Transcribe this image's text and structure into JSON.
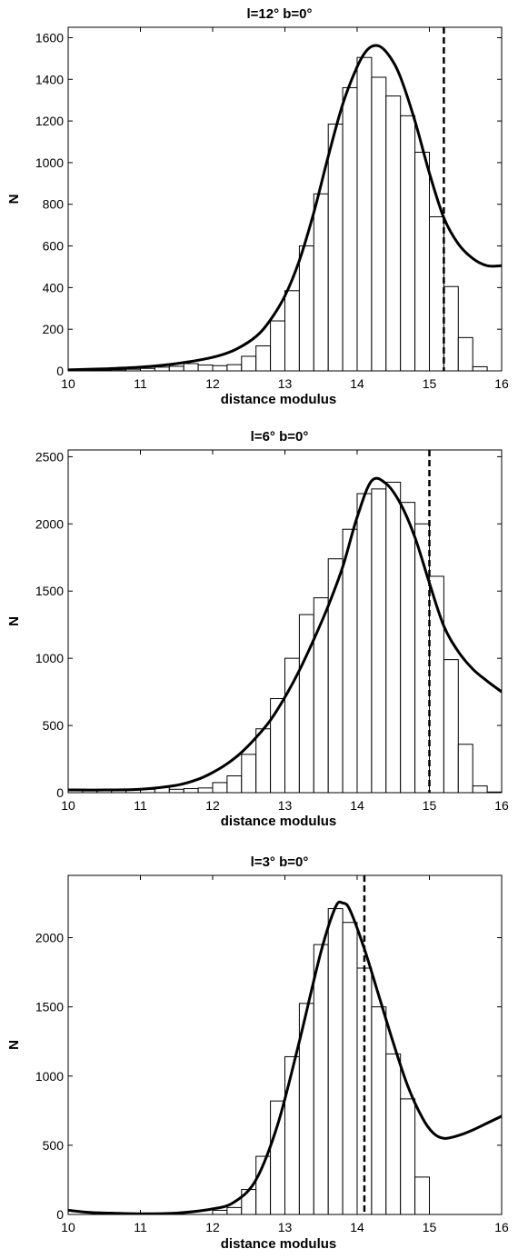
{
  "chart_data": [
    {
      "type": "bar",
      "title": "l=12°  b=0°",
      "xlabel": "distance modulus",
      "ylabel": "N",
      "xlim": [
        10,
        16
      ],
      "ylim": [
        0,
        1650
      ],
      "xticks": [
        10,
        11,
        12,
        13,
        14,
        15,
        16
      ],
      "yticks": [
        0,
        200,
        400,
        600,
        800,
        1000,
        1200,
        1400,
        1600
      ],
      "bin_width": 0.2,
      "bin_starts": [
        10.0,
        10.2,
        10.4,
        10.6,
        10.8,
        11.0,
        11.2,
        11.4,
        11.6,
        11.8,
        12.0,
        12.2,
        12.4,
        12.6,
        12.8,
        13.0,
        13.2,
        13.4,
        13.6,
        13.8,
        14.0,
        14.2,
        14.4,
        14.6,
        14.8,
        15.0,
        15.2,
        15.4,
        15.6,
        15.8
      ],
      "values": [
        5,
        3,
        3,
        5,
        8,
        12,
        18,
        22,
        35,
        28,
        25,
        30,
        70,
        120,
        240,
        385,
        600,
        850,
        1185,
        1360,
        1505,
        1410,
        1320,
        1225,
        1050,
        740,
        405,
        160,
        20,
        0
      ],
      "model_curve": {
        "x": [
          10.0,
          10.5,
          11.0,
          11.5,
          12.0,
          12.3,
          12.6,
          12.8,
          13.0,
          13.2,
          13.4,
          13.6,
          13.8,
          14.0,
          14.15,
          14.3,
          14.45,
          14.6,
          14.8,
          15.0,
          15.2,
          15.4,
          15.6,
          15.8,
          16.0
        ],
        "y": [
          5,
          10,
          18,
          35,
          65,
          100,
          165,
          245,
          360,
          530,
          760,
          1030,
          1280,
          1460,
          1545,
          1560,
          1510,
          1410,
          1200,
          950,
          735,
          610,
          540,
          505,
          505
        ]
      },
      "reference_line_x": 15.2
    },
    {
      "type": "bar",
      "title": "l=6°  b=0°",
      "xlabel": "distance modulus",
      "ylabel": "N",
      "xlim": [
        10,
        16
      ],
      "ylim": [
        0,
        2550
      ],
      "xticks": [
        10,
        11,
        12,
        13,
        14,
        15,
        16
      ],
      "yticks": [
        0,
        500,
        1000,
        1500,
        2000,
        2500
      ],
      "bin_width": 0.2,
      "bin_starts": [
        10.0,
        10.2,
        10.4,
        10.6,
        10.8,
        11.0,
        11.2,
        11.4,
        11.6,
        11.8,
        12.0,
        12.2,
        12.4,
        12.6,
        12.8,
        13.0,
        13.2,
        13.4,
        13.6,
        13.8,
        14.0,
        14.2,
        14.4,
        14.6,
        14.8,
        15.0,
        15.2,
        15.4,
        15.6,
        15.8
      ],
      "values": [
        25,
        20,
        20,
        20,
        20,
        25,
        40,
        25,
        30,
        35,
        75,
        125,
        285,
        475,
        700,
        1000,
        1325,
        1450,
        1740,
        1960,
        2225,
        2260,
        2310,
        2160,
        2000,
        1610,
        990,
        360,
        50,
        5
      ],
      "model_curve": {
        "x": [
          10.0,
          10.5,
          11.0,
          11.5,
          11.8,
          12.0,
          12.2,
          12.4,
          12.6,
          12.8,
          13.0,
          13.2,
          13.4,
          13.6,
          13.8,
          14.0,
          14.2,
          14.4,
          14.6,
          14.8,
          15.0,
          15.2,
          15.4,
          15.6,
          15.8,
          16.0
        ],
        "y": [
          20,
          20,
          25,
          55,
          100,
          150,
          215,
          300,
          410,
          540,
          710,
          910,
          1140,
          1390,
          1680,
          2050,
          2320,
          2300,
          2150,
          1900,
          1560,
          1240,
          1050,
          920,
          830,
          750
        ]
      },
      "reference_line_x": 15.0
    },
    {
      "type": "bar",
      "title": "l=3°  b=0°",
      "xlabel": "distance modulus",
      "ylabel": "N",
      "xlim": [
        10,
        16
      ],
      "ylim": [
        0,
        2450
      ],
      "xticks": [
        10,
        11,
        12,
        13,
        14,
        15,
        16
      ],
      "yticks": [
        0,
        500,
        1000,
        1500,
        2000
      ],
      "bin_width": 0.2,
      "bin_starts": [
        10.0,
        10.2,
        10.4,
        10.6,
        10.8,
        11.0,
        11.2,
        11.4,
        11.6,
        11.8,
        12.0,
        12.2,
        12.4,
        12.6,
        12.8,
        13.0,
        13.2,
        13.4,
        13.6,
        13.8,
        14.0,
        14.2,
        14.4,
        14.6,
        14.8
      ],
      "values": [
        0,
        0,
        0,
        0,
        0,
        0,
        0,
        0,
        0,
        0,
        30,
        50,
        180,
        420,
        820,
        1140,
        1525,
        1950,
        2210,
        2110,
        1780,
        1500,
        1160,
        835,
        270
      ],
      "model_curve": {
        "x": [
          10.0,
          10.3,
          10.7,
          11.0,
          11.5,
          12.0,
          12.3,
          12.6,
          12.9,
          13.2,
          13.5,
          13.7,
          13.8,
          13.9,
          14.1,
          14.3,
          14.5,
          14.7,
          14.9,
          15.05,
          15.2,
          15.4,
          15.6,
          15.8,
          16.0
        ],
        "y": [
          30,
          15,
          8,
          5,
          10,
          40,
          90,
          250,
          650,
          1250,
          1900,
          2220,
          2250,
          2200,
          1920,
          1580,
          1240,
          930,
          700,
          590,
          550,
          570,
          610,
          660,
          710
        ]
      },
      "reference_line_x": 14.1
    }
  ]
}
